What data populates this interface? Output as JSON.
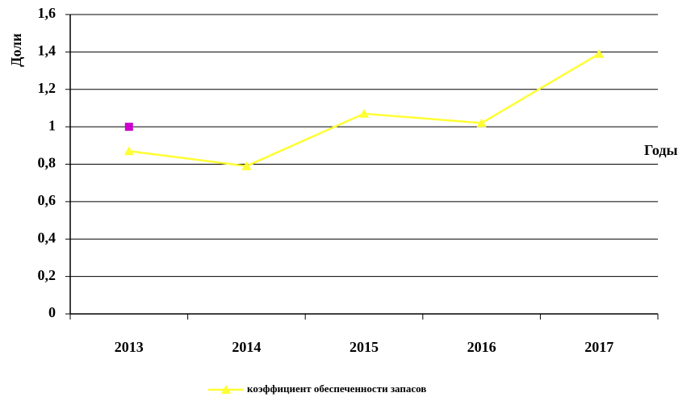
{
  "chart_data": {
    "type": "line",
    "y_label": "Доли",
    "x_label": "Годы",
    "categories": [
      "2013",
      "2014",
      "2015",
      "2016",
      "2017"
    ],
    "series": [
      {
        "name": "коэффициент обеспеченности запасов",
        "color": "#ffff33",
        "marker": "triangle",
        "values": [
          0.87,
          0.79,
          1.07,
          1.02,
          1.39
        ]
      },
      {
        "color": "#cc00cc",
        "marker": "square",
        "values": [
          1,
          null,
          null,
          null,
          null
        ]
      }
    ],
    "ylim": [
      0,
      1.6
    ],
    "yticks": [
      0,
      {
        "value": 0.2,
        "label": "0,2"
      },
      {
        "value": 0.4,
        "label": "0,4"
      },
      {
        "value": 0.6,
        "label": "0,6"
      },
      {
        "value": 0.8,
        "label": "0,8"
      },
      1,
      {
        "value": 1.2,
        "label": "1,2"
      },
      {
        "value": 1.4,
        "label": "1,4"
      },
      {
        "value": 1.6,
        "label": "1,6"
      }
    ],
    "grid": true,
    "legend": "bottom"
  }
}
